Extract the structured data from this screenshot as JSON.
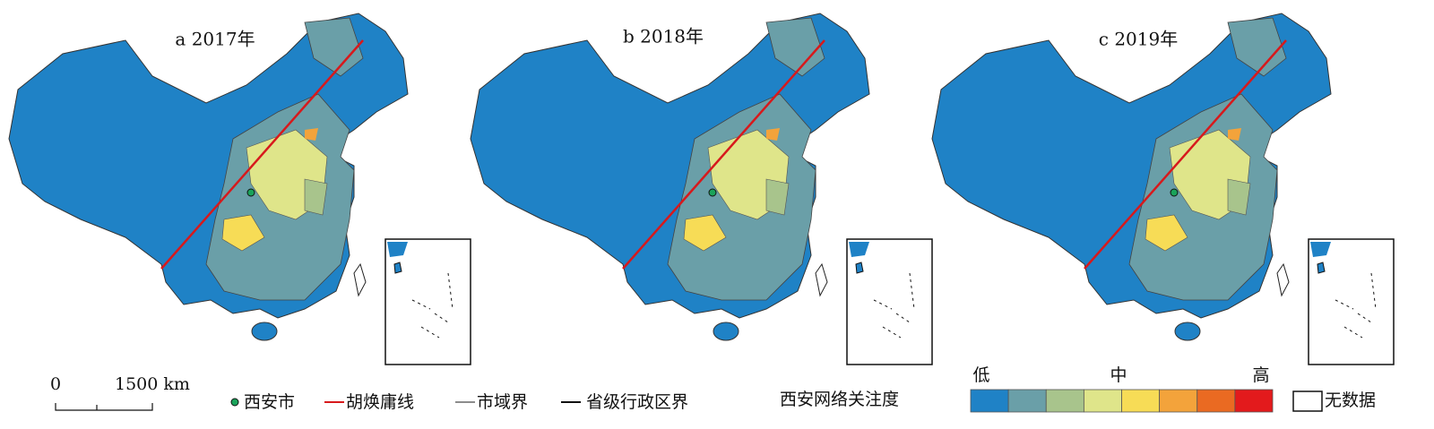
{
  "panels": [
    {
      "title": "a 2017年"
    },
    {
      "title": "b 2018年"
    },
    {
      "title": "c 2019年"
    }
  ],
  "scale_bar": {
    "zero": "0",
    "length": "1500 km"
  },
  "legend": {
    "xian": "西安市",
    "hu_line": "胡焕庸线",
    "city_boundary": "市域界",
    "province_boundary": "省级行政区界",
    "ramp_title": "西安网络关注度",
    "ramp_low": "低",
    "ramp_mid": "中",
    "ramp_high": "高",
    "ramp_colors": [
      "#1f82c6",
      "#6a9fa8",
      "#a8c48c",
      "#dfe58a",
      "#f7dc56",
      "#f3a33b",
      "#ea6a22",
      "#e31a1c"
    ],
    "no_data": "无数据"
  }
}
